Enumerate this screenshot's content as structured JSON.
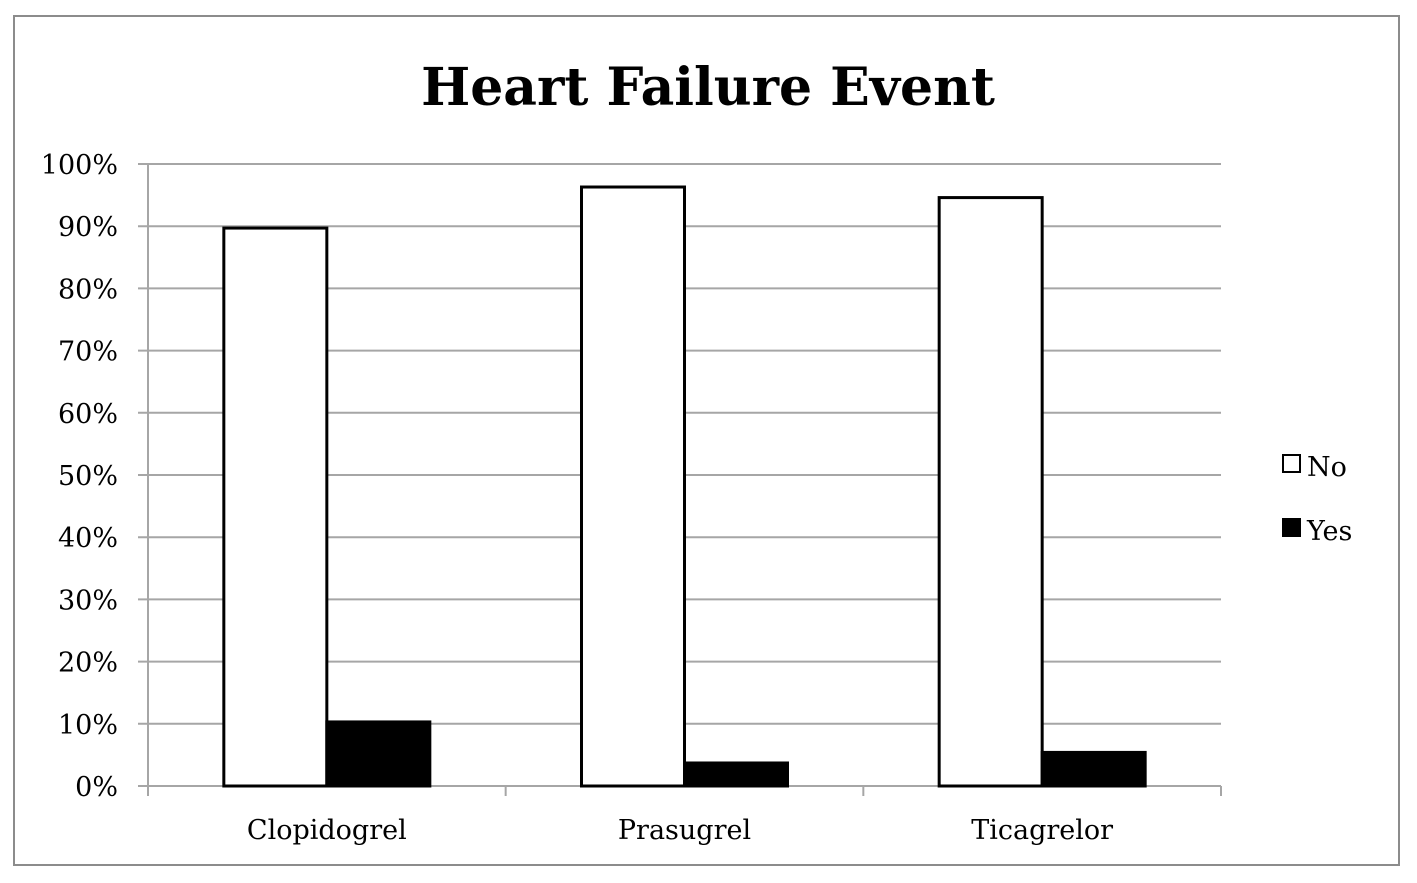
{
  "chart_data": {
    "type": "bar",
    "title": "Heart Failure Event",
    "xlabel": "",
    "ylabel": "",
    "categories": [
      "Clopidogrel",
      "Prasugrel",
      "Ticagrelor"
    ],
    "series": [
      {
        "name": "No",
        "values": [
          89.7,
          96.3,
          94.6
        ],
        "color": "#ffffff"
      },
      {
        "name": "Yes",
        "values": [
          10.3,
          3.7,
          5.4
        ],
        "color": "#000000"
      }
    ],
    "ylim": [
      0,
      100
    ],
    "yticks": [
      0,
      10,
      20,
      30,
      40,
      50,
      60,
      70,
      80,
      90,
      100
    ],
    "ytick_labels": [
      "0%",
      "10%",
      "20%",
      "30%",
      "40%",
      "50%",
      "60%",
      "70%",
      "80%",
      "90%",
      "100%"
    ],
    "grid": true,
    "legend_position": "right",
    "colors": {
      "gridline": "#a6a6a6",
      "bar_stroke": "#000000",
      "frame": "#8c8c8c"
    }
  }
}
